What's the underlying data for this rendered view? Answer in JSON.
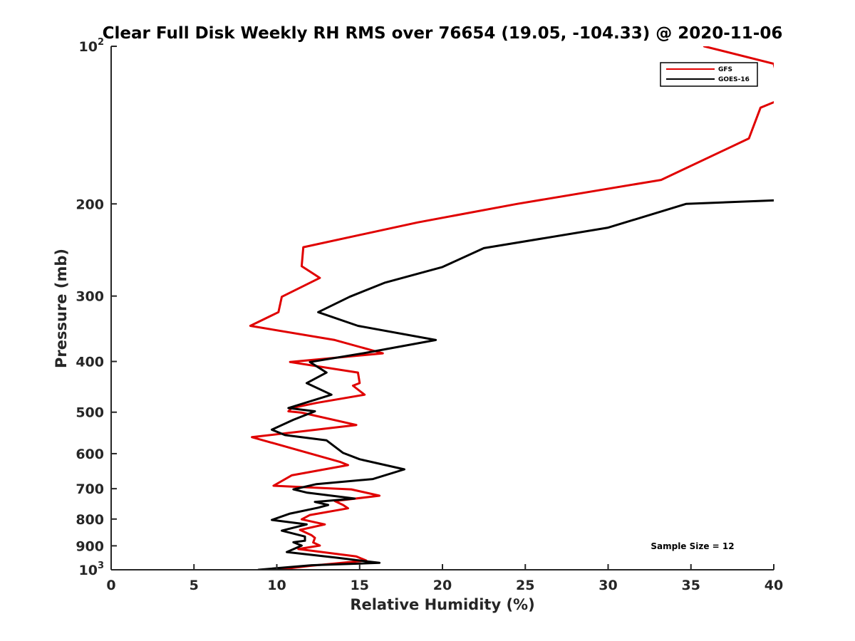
{
  "chart_data": {
    "type": "line",
    "title": "Clear Full Disk Weekly RH RMS over 76654 (19.05, -104.33) @ 2020-11-06",
    "xlabel": "Relative Humidity (%)",
    "ylabel": "Pressure (mb)",
    "xlim": [
      0,
      40
    ],
    "ylim": [
      100,
      1000
    ],
    "yscale": "log",
    "y_reversed": true,
    "x_ticks": [
      0,
      5,
      10,
      15,
      20,
      25,
      30,
      35,
      40
    ],
    "x_tick_labels": [
      "0",
      "5",
      "10",
      "15",
      "20",
      "25",
      "30",
      "35",
      "40"
    ],
    "y_ticks": [
      100,
      200,
      300,
      400,
      500,
      600,
      700,
      800,
      900,
      1000
    ],
    "y_tick_labels": [
      {
        "base": "10",
        "sup": "2"
      },
      {
        "base": "200"
      },
      {
        "base": "300"
      },
      {
        "base": "400"
      },
      {
        "base": "500"
      },
      {
        "base": "600"
      },
      {
        "base": "700"
      },
      {
        "base": "800"
      },
      {
        "base": "900"
      },
      {
        "base": "10",
        "sup": "3"
      }
    ],
    "legend_position": "top-right",
    "annotation": "Sample Size = 12",
    "series": [
      {
        "name": "GFS",
        "color": "#e00000",
        "points": [
          [
            35.8,
            100
          ],
          [
            40,
            108
          ],
          [
            40.5,
            126
          ],
          [
            39.2,
            131
          ],
          [
            38.5,
            150
          ],
          [
            33.2,
            180
          ],
          [
            24.5,
            200
          ],
          [
            18.5,
            217
          ],
          [
            11.6,
            242
          ],
          [
            11.5,
            263
          ],
          [
            12.6,
            277
          ],
          [
            10.3,
            301
          ],
          [
            10.1,
            322
          ],
          [
            8.4,
            342
          ],
          [
            13.5,
            364
          ],
          [
            16.4,
            386
          ],
          [
            10.8,
            401
          ],
          [
            14.9,
            420
          ],
          [
            15.0,
            440
          ],
          [
            14.6,
            445
          ],
          [
            15.3,
            463
          ],
          [
            12.4,
            480
          ],
          [
            10.9,
            491
          ],
          [
            10.7,
            498
          ],
          [
            11.5,
            501
          ],
          [
            14.8,
            529
          ],
          [
            8.5,
            558
          ],
          [
            13.8,
            622
          ],
          [
            14.3,
            631
          ],
          [
            10.9,
            660
          ],
          [
            9.8,
            691
          ],
          [
            14.5,
            702
          ],
          [
            16.2,
            722
          ],
          [
            13.5,
            739
          ],
          [
            14.0,
            752
          ],
          [
            14.3,
            763
          ],
          [
            12.0,
            786
          ],
          [
            11.5,
            801
          ],
          [
            12.9,
            819
          ],
          [
            11.4,
            839
          ],
          [
            12.1,
            859
          ],
          [
            12.3,
            869
          ],
          [
            12.2,
            887
          ],
          [
            12.6,
            899
          ],
          [
            11.3,
            913
          ],
          [
            14.8,
            943
          ],
          [
            15.4,
            960
          ],
          [
            12.0,
            983
          ],
          [
            10.0,
            1000
          ]
        ]
      },
      {
        "name": "GOES-16",
        "color": "#000000",
        "points": [
          [
            40,
            197
          ],
          [
            34.7,
            200
          ],
          [
            30,
            222
          ],
          [
            22.5,
            243
          ],
          [
            20.0,
            264
          ],
          [
            16.5,
            283
          ],
          [
            14.4,
            301
          ],
          [
            12.5,
            322
          ],
          [
            14.9,
            342
          ],
          [
            19.6,
            364
          ],
          [
            15.2,
            386
          ],
          [
            12.0,
            401
          ],
          [
            13.0,
            420
          ],
          [
            11.8,
            440
          ],
          [
            13.3,
            463
          ],
          [
            10.7,
            491
          ],
          [
            12.3,
            498
          ],
          [
            11.0,
            517
          ],
          [
            9.7,
            540
          ],
          [
            10.5,
            553
          ],
          [
            13.0,
            566
          ],
          [
            14.0,
            598
          ],
          [
            15.0,
            615
          ],
          [
            17.7,
            643
          ],
          [
            15.8,
            671
          ],
          [
            12.4,
            686
          ],
          [
            11.0,
            702
          ],
          [
            11.8,
            712
          ],
          [
            14.7,
            731
          ],
          [
            12.3,
            742
          ],
          [
            13.1,
            752
          ],
          [
            12.5,
            761
          ],
          [
            10.8,
            781
          ],
          [
            9.7,
            803
          ],
          [
            11.8,
            819
          ],
          [
            10.3,
            842
          ],
          [
            11.7,
            864
          ],
          [
            11.7,
            880
          ],
          [
            11.0,
            886
          ],
          [
            11.5,
            899
          ],
          [
            10.6,
            925
          ],
          [
            13.7,
            949
          ],
          [
            16.2,
            970
          ],
          [
            12.1,
            980
          ],
          [
            8.9,
            1000
          ]
        ]
      }
    ]
  }
}
